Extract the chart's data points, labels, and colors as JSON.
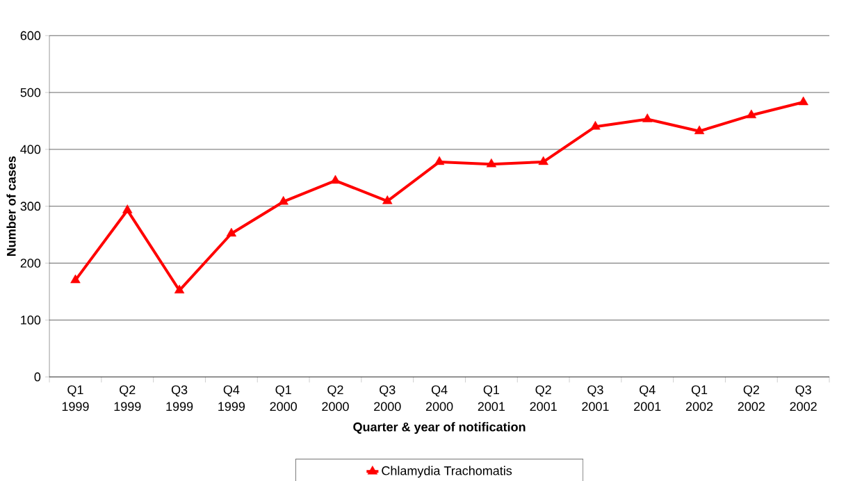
{
  "chart_data": {
    "type": "line",
    "xlabel": "Quarter & year of notification",
    "ylabel": "Number of cases",
    "categories": [
      "Q1 1999",
      "Q2 1999",
      "Q3 1999",
      "Q4 1999",
      "Q1 2000",
      "Q2 2000",
      "Q3 2000",
      "Q4 2000",
      "Q1 2001",
      "Q2 2001",
      "Q3 2001",
      "Q4 2001",
      "Q1 2002",
      "Q2 2002",
      "Q3 2002"
    ],
    "series": [
      {
        "name": "Chlamydia Trachomatis",
        "color": "#ff0000",
        "values": [
          170,
          293,
          152,
          252,
          308,
          345,
          309,
          378,
          374,
          378,
          440,
          453,
          432,
          460,
          483
        ]
      }
    ],
    "ylim": [
      0,
      600
    ],
    "yticks": [
      0,
      100,
      200,
      300,
      400,
      500,
      600
    ],
    "grid": "y",
    "legend": "bottom",
    "marker": "triangle",
    "line_style": "solid"
  }
}
